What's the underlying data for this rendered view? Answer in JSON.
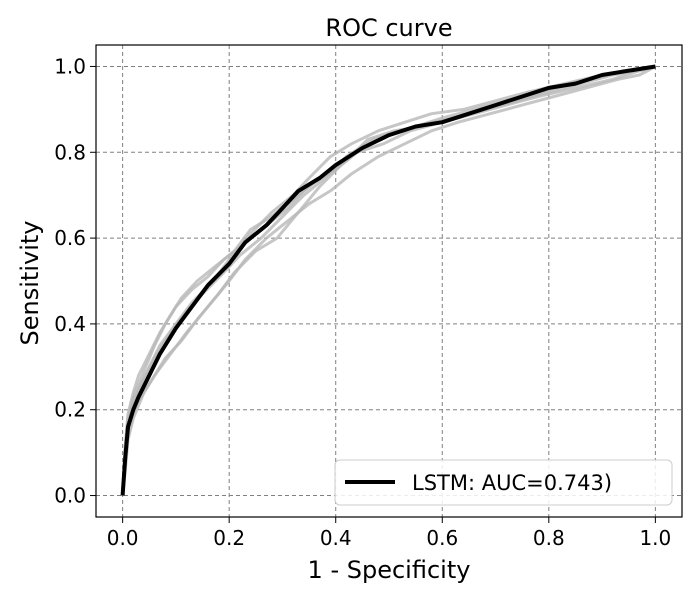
{
  "chart_data": {
    "type": "line",
    "title": "ROC curve",
    "xlabel": "1 - Specificity",
    "ylabel": "Sensitivity",
    "xlim": [
      -0.05,
      1.05
    ],
    "ylim": [
      -0.05,
      1.05
    ],
    "xticks": [
      0.0,
      0.2,
      0.4,
      0.6,
      0.8,
      1.0
    ],
    "yticks": [
      0.0,
      0.2,
      0.4,
      0.6,
      0.8,
      1.0
    ],
    "tick_labels_x": [
      "0.0",
      "0.2",
      "0.4",
      "0.6",
      "0.8",
      "1.0"
    ],
    "tick_labels_y": [
      "0.0",
      "0.2",
      "0.4",
      "0.6",
      "0.8",
      "1.0"
    ],
    "grid": true,
    "legend": {
      "position": "bottom-right",
      "entries": [
        "LSTM:  AUC=0.743)"
      ]
    },
    "colors": {
      "main": "#000000",
      "folds": "#b8b8b8",
      "grid": "#808080"
    },
    "main_series": {
      "name": "LSTM:  AUC=0.743)",
      "x": [
        0.0,
        0.005,
        0.01,
        0.02,
        0.03,
        0.05,
        0.07,
        0.1,
        0.13,
        0.16,
        0.2,
        0.23,
        0.27,
        0.3,
        0.33,
        0.37,
        0.4,
        0.45,
        0.5,
        0.55,
        0.6,
        0.65,
        0.7,
        0.75,
        0.8,
        0.85,
        0.9,
        0.95,
        1.0
      ],
      "y": [
        0.0,
        0.09,
        0.16,
        0.2,
        0.23,
        0.28,
        0.33,
        0.39,
        0.44,
        0.49,
        0.54,
        0.59,
        0.63,
        0.67,
        0.71,
        0.74,
        0.77,
        0.81,
        0.84,
        0.86,
        0.87,
        0.89,
        0.91,
        0.93,
        0.95,
        0.96,
        0.98,
        0.99,
        1.0
      ]
    },
    "fold_series": [
      {
        "x": [
          0.0,
          0.005,
          0.01,
          0.02,
          0.04,
          0.06,
          0.09,
          0.12,
          0.15,
          0.19,
          0.22,
          0.26,
          0.3,
          0.34,
          0.38,
          0.42,
          0.47,
          0.52,
          0.58,
          0.63,
          0.68,
          0.74,
          0.8,
          0.86,
          0.92,
          0.97,
          1.0
        ],
        "y": [
          0.0,
          0.1,
          0.17,
          0.22,
          0.27,
          0.32,
          0.38,
          0.43,
          0.47,
          0.52,
          0.56,
          0.6,
          0.65,
          0.7,
          0.74,
          0.79,
          0.83,
          0.85,
          0.87,
          0.88,
          0.9,
          0.92,
          0.94,
          0.96,
          0.98,
          0.99,
          1.0
        ]
      },
      {
        "x": [
          0.0,
          0.005,
          0.01,
          0.02,
          0.03,
          0.05,
          0.08,
          0.11,
          0.14,
          0.18,
          0.21,
          0.25,
          0.29,
          0.33,
          0.37,
          0.41,
          0.45,
          0.5,
          0.55,
          0.6,
          0.66,
          0.72,
          0.78,
          0.84,
          0.9,
          0.95,
          1.0
        ],
        "y": [
          0.0,
          0.07,
          0.14,
          0.19,
          0.22,
          0.26,
          0.32,
          0.36,
          0.41,
          0.47,
          0.52,
          0.57,
          0.6,
          0.66,
          0.72,
          0.77,
          0.81,
          0.84,
          0.86,
          0.88,
          0.9,
          0.92,
          0.94,
          0.96,
          0.98,
          0.99,
          1.0
        ]
      },
      {
        "x": [
          0.0,
          0.005,
          0.01,
          0.02,
          0.04,
          0.06,
          0.08,
          0.11,
          0.14,
          0.17,
          0.21,
          0.24,
          0.28,
          0.32,
          0.36,
          0.4,
          0.44,
          0.49,
          0.54,
          0.6,
          0.66,
          0.72,
          0.78,
          0.85,
          0.92,
          0.97,
          1.0
        ],
        "y": [
          0.0,
          0.11,
          0.18,
          0.23,
          0.29,
          0.35,
          0.4,
          0.46,
          0.5,
          0.53,
          0.57,
          0.62,
          0.65,
          0.69,
          0.73,
          0.76,
          0.8,
          0.82,
          0.85,
          0.87,
          0.89,
          0.91,
          0.93,
          0.95,
          0.97,
          0.99,
          1.0
        ]
      },
      {
        "x": [
          0.0,
          0.005,
          0.01,
          0.02,
          0.03,
          0.05,
          0.07,
          0.1,
          0.13,
          0.17,
          0.2,
          0.24,
          0.28,
          0.32,
          0.35,
          0.39,
          0.43,
          0.48,
          0.53,
          0.58,
          0.64,
          0.7,
          0.76,
          0.83,
          0.9,
          0.96,
          1.0
        ],
        "y": [
          0.0,
          0.08,
          0.15,
          0.21,
          0.25,
          0.3,
          0.35,
          0.4,
          0.45,
          0.5,
          0.55,
          0.61,
          0.66,
          0.7,
          0.74,
          0.79,
          0.82,
          0.85,
          0.87,
          0.89,
          0.9,
          0.92,
          0.94,
          0.96,
          0.98,
          0.99,
          1.0
        ]
      },
      {
        "x": [
          0.0,
          0.005,
          0.01,
          0.02,
          0.04,
          0.06,
          0.09,
          0.12,
          0.16,
          0.2,
          0.23,
          0.27,
          0.31,
          0.35,
          0.39,
          0.43,
          0.48,
          0.53,
          0.58,
          0.63,
          0.69,
          0.75,
          0.81,
          0.87,
          0.93,
          0.97,
          1.0
        ],
        "y": [
          0.0,
          0.06,
          0.13,
          0.18,
          0.24,
          0.28,
          0.33,
          0.38,
          0.44,
          0.5,
          0.55,
          0.6,
          0.64,
          0.68,
          0.71,
          0.75,
          0.79,
          0.82,
          0.85,
          0.87,
          0.89,
          0.91,
          0.93,
          0.95,
          0.97,
          0.98,
          1.0
        ]
      },
      {
        "x": [
          0.0,
          0.005,
          0.01,
          0.02,
          0.03,
          0.05,
          0.07,
          0.1,
          0.13,
          0.16,
          0.19,
          0.23,
          0.27,
          0.31,
          0.34,
          0.38,
          0.42,
          0.46,
          0.51,
          0.56,
          0.62,
          0.68,
          0.74,
          0.81,
          0.88,
          0.94,
          1.0
        ],
        "y": [
          0.0,
          0.12,
          0.19,
          0.24,
          0.28,
          0.33,
          0.38,
          0.44,
          0.48,
          0.51,
          0.55,
          0.59,
          0.63,
          0.67,
          0.71,
          0.75,
          0.78,
          0.83,
          0.85,
          0.86,
          0.88,
          0.9,
          0.92,
          0.95,
          0.97,
          0.99,
          1.0
        ]
      }
    ]
  }
}
